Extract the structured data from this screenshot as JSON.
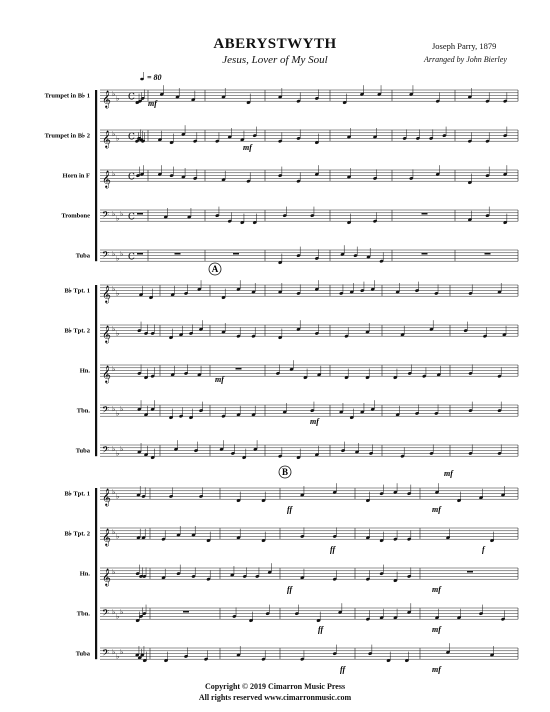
{
  "header": {
    "title": "ABERYSTWYTH",
    "subtitle": "Jesus, Lover of My Soul",
    "composer": "Joseph Parry, 1879",
    "arranger": "Arranged by John Bierley"
  },
  "tempo_text": "= 80",
  "systems": [
    {
      "instruments": [
        "Trumpet in B♭ 1",
        "Trumpet in B♭ 2",
        "Horn in F",
        "Trombone",
        "Tuba"
      ],
      "rehearsal": "",
      "dynamics": [
        "mf",
        "mf"
      ]
    },
    {
      "instruments": [
        "B♭ Tpt. 1",
        "B♭ Tpt. 2",
        "Hn.",
        "Tbn.",
        "Tuba"
      ],
      "rehearsal": "A",
      "dynamics": [
        "mf",
        "mf",
        "mf"
      ]
    },
    {
      "instruments": [
        "B♭ Tpt. 1",
        "B♭ Tpt. 2",
        "Hn.",
        "Tbn.",
        "Tuba"
      ],
      "rehearsal": "B",
      "dynamics": [
        "ff",
        "ff",
        "ff",
        "ff",
        "ff",
        "mf",
        "f",
        "mf",
        "mf",
        "mf"
      ]
    }
  ],
  "footer": {
    "copyright": "Copyright © 2019 Cimarron Music Press",
    "rights": "All rights reserved     www.cimarronmusic.com"
  }
}
